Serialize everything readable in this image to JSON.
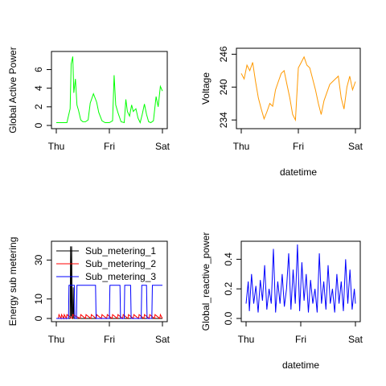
{
  "chart_data": [
    {
      "type": "line",
      "title": "",
      "xlabel": "",
      "ylabel": "Global Active Power",
      "x_ticks": [
        "Thu",
        "Fri",
        "Sat"
      ],
      "y_ticks": [
        "0",
        "2",
        "4",
        "6"
      ],
      "xlim": [
        0,
        2
      ],
      "ylim": [
        0,
        7.6
      ],
      "grid": false,
      "series": [
        {
          "color": "#00ff00",
          "x": [
            0,
            0.1,
            0.2,
            0.26,
            0.28,
            0.31,
            0.33,
            0.36,
            0.39,
            0.42,
            0.46,
            0.5,
            0.55,
            0.6,
            0.64,
            0.7,
            0.76,
            0.8,
            0.86,
            0.92,
            1.0,
            1.06,
            1.09,
            1.12,
            1.16,
            1.22,
            1.28,
            1.31,
            1.34,
            1.38,
            1.42,
            1.45,
            1.5,
            1.54,
            1.58,
            1.62,
            1.66,
            1.7,
            1.74,
            1.78,
            1.83,
            1.88,
            1.92,
            1.96,
            2.0
          ],
          "y": [
            0.3,
            0.3,
            0.3,
            1.8,
            6.6,
            7.4,
            3.5,
            5.0,
            2.2,
            1.6,
            0.6,
            0.4,
            0.4,
            0.6,
            2.4,
            3.4,
            2.5,
            1.4,
            0.5,
            0.3,
            0.3,
            0.5,
            5.4,
            2.2,
            1.4,
            0.4,
            0.3,
            2.8,
            1.5,
            1.0,
            2.2,
            1.5,
            1.8,
            0.8,
            0.3,
            1.2,
            2.3,
            1.2,
            0.4,
            0.3,
            0.5,
            3.1,
            2.0,
            4.2,
            3.7
          ]
        }
      ]
    },
    {
      "type": "line",
      "title": "",
      "xlabel": "datetime",
      "ylabel": "Voltage",
      "x_ticks": [
        "Thu",
        "Fri",
        "Sat"
      ],
      "y_ticks": [
        "234",
        "240",
        "246"
      ],
      "xlim": [
        0,
        2
      ],
      "ylim": [
        233,
        246.5
      ],
      "grid": false,
      "series": [
        {
          "color": "#ff9900",
          "x": [
            0,
            0.05,
            0.1,
            0.15,
            0.2,
            0.25,
            0.3,
            0.35,
            0.4,
            0.45,
            0.5,
            0.55,
            0.6,
            0.65,
            0.7,
            0.75,
            0.8,
            0.85,
            0.9,
            0.95,
            1.0,
            1.05,
            1.1,
            1.15,
            1.2,
            1.25,
            1.3,
            1.35,
            1.4,
            1.45,
            1.5,
            1.55,
            1.6,
            1.65,
            1.7,
            1.75,
            1.8,
            1.85,
            1.9,
            1.95,
            2.0
          ],
          "y": [
            242.5,
            241.5,
            244.0,
            243.0,
            244.5,
            241.0,
            238.0,
            236.0,
            234.2,
            235.5,
            237.0,
            236.5,
            239.5,
            241.0,
            242.5,
            243.0,
            240.5,
            238.0,
            235.0,
            234.0,
            243.5,
            244.5,
            245.5,
            244.0,
            243.5,
            241.5,
            239.5,
            237.0,
            235.0,
            237.5,
            239.0,
            240.5,
            241.0,
            241.5,
            242.0,
            238.0,
            236.0,
            240.0,
            242.0,
            239.5,
            241.0
          ]
        }
      ]
    },
    {
      "type": "line",
      "title": "",
      "xlabel": "",
      "ylabel": "Energy sub metering",
      "x_ticks": [
        "Thu",
        "Fri",
        "Sat"
      ],
      "y_ticks": [
        "0",
        "10",
        "30"
      ],
      "y_tick_values": [
        0,
        10,
        30
      ],
      "xlim": [
        0,
        2
      ],
      "ylim": [
        0,
        38
      ],
      "grid": false,
      "legend": "top-right",
      "series": [
        {
          "name": "Sub_metering_1",
          "color": "#000000",
          "x": [
            0,
            0.26,
            0.27,
            0.28,
            0.29,
            0.3,
            0.31,
            0.32,
            0.33,
            0.34,
            0.36,
            0.37,
            0.38,
            2.0
          ],
          "y": [
            0,
            0,
            37,
            1,
            37,
            0,
            0,
            16,
            0,
            0,
            0,
            0,
            0,
            0
          ]
        },
        {
          "name": "Sub_metering_2",
          "color": "#ff0000",
          "x": [
            0,
            0.04,
            0.05,
            0.09,
            0.1,
            0.14,
            0.15,
            0.19,
            0.2,
            0.3,
            0.31,
            0.45,
            0.46,
            0.55,
            0.56,
            0.65,
            0.66,
            0.75,
            0.76,
            0.85,
            0.86,
            0.95,
            0.96,
            1.05,
            1.06,
            1.15,
            1.16,
            1.25,
            1.26,
            1.35,
            1.36,
            1.45,
            1.46,
            1.55,
            1.56,
            1.65,
            1.66,
            1.75,
            1.76,
            1.85,
            1.86,
            1.95,
            1.96,
            2.0
          ],
          "y": [
            0,
            0,
            2,
            0,
            2,
            0,
            2,
            0,
            2,
            0,
            2,
            0,
            2,
            0,
            2,
            0,
            2,
            0,
            2,
            0,
            2,
            0,
            2,
            0,
            2,
            0,
            2,
            0,
            2,
            0,
            2,
            0,
            2,
            0,
            2,
            0,
            2,
            0,
            2,
            0,
            2,
            0,
            2,
            0
          ]
        },
        {
          "name": "Sub_metering_3",
          "color": "#0000ff",
          "x": [
            0,
            0.23,
            0.24,
            0.34,
            0.35,
            0.38,
            0.39,
            0.74,
            0.75,
            1.0,
            1.01,
            1.2,
            1.21,
            1.28,
            1.29,
            1.4,
            1.41,
            1.6,
            1.61,
            1.7,
            1.71,
            1.8,
            1.81,
            2.0
          ],
          "y": [
            0,
            0,
            17,
            17,
            0,
            0,
            17,
            17,
            0,
            0,
            17,
            17,
            0,
            0,
            17,
            17,
            0,
            0,
            17,
            17,
            0,
            0,
            17,
            17
          ]
        }
      ]
    },
    {
      "type": "line",
      "title": "",
      "xlabel": "datetime",
      "ylabel": "Global_reactive_power",
      "x_ticks": [
        "Thu",
        "Fri",
        "Sat"
      ],
      "y_ticks": [
        "0.0",
        "0.2",
        "0.4"
      ],
      "y_tick_values": [
        0.0,
        0.2,
        0.4
      ],
      "xlim": [
        0,
        2
      ],
      "ylim": [
        0,
        0.5
      ],
      "grid": false,
      "series": [
        {
          "color": "#0000ff",
          "x": [
            0,
            0.04,
            0.06,
            0.1,
            0.14,
            0.18,
            0.22,
            0.26,
            0.3,
            0.34,
            0.38,
            0.42,
            0.46,
            0.5,
            0.54,
            0.58,
            0.62,
            0.66,
            0.7,
            0.74,
            0.78,
            0.82,
            0.86,
            0.9,
            0.94,
            0.98,
            1.02,
            1.06,
            1.1,
            1.14,
            1.18,
            1.22,
            1.26,
            1.3,
            1.34,
            1.38,
            1.42,
            1.46,
            1.5,
            1.54,
            1.58,
            1.62,
            1.66,
            1.7,
            1.74,
            1.78,
            1.82,
            1.86,
            1.9,
            1.94,
            1.98,
            2.0
          ],
          "y": [
            0.1,
            0.25,
            0.05,
            0.3,
            0.1,
            0.22,
            0.04,
            0.26,
            0.12,
            0.36,
            0.06,
            0.2,
            0.1,
            0.47,
            0.04,
            0.25,
            0.1,
            0.3,
            0.08,
            0.2,
            0.44,
            0.06,
            0.33,
            0.1,
            0.5,
            0.05,
            0.38,
            0.12,
            0.3,
            0.04,
            0.26,
            0.1,
            0.2,
            0.04,
            0.44,
            0.1,
            0.25,
            0.06,
            0.36,
            0.1,
            0.2,
            0.04,
            0.3,
            0.1,
            0.25,
            0.05,
            0.4,
            0.1,
            0.33,
            0.06,
            0.2,
            0.1
          ]
        }
      ]
    }
  ]
}
